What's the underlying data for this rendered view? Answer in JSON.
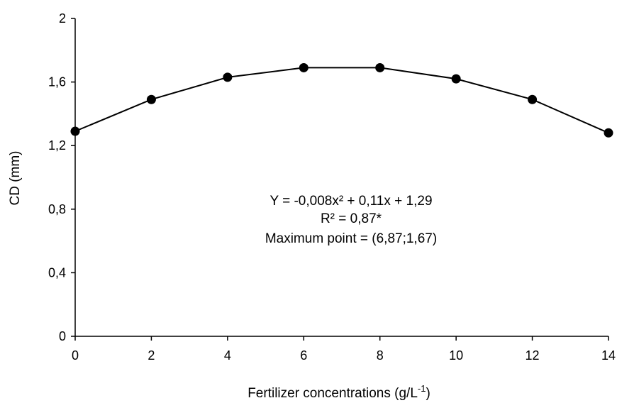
{
  "chart_data": {
    "type": "line",
    "title": "",
    "xlabel": "Fertilizer concentrations (g/L",
    "xlabel_superscript": "-1",
    "xlabel_suffix": ")",
    "ylabel": "CD (mm)",
    "x": [
      0,
      2,
      4,
      6,
      8,
      10,
      12,
      14
    ],
    "series": [
      {
        "values": [
          1.29,
          1.49,
          1.63,
          1.69,
          1.69,
          1.62,
          1.49,
          1.28
        ],
        "color": "#000000",
        "marker": "circle"
      }
    ],
    "xlim": [
      0,
      14
    ],
    "ylim": [
      0,
      2
    ],
    "x_ticks": [
      0,
      2,
      4,
      6,
      8,
      10,
      12,
      14
    ],
    "x_tick_labels": [
      "0",
      "2",
      "4",
      "6",
      "8",
      "10",
      "12",
      "14"
    ],
    "y_ticks": [
      0,
      0.4,
      0.8,
      1.2,
      1.6,
      2
    ],
    "y_tick_labels": [
      "0",
      "0,4",
      "0,8",
      "1,2",
      "1,6",
      "2"
    ],
    "grid": false,
    "legend": "none",
    "annotations": [
      "Y = -0,008x² + 0,11x + 1,29",
      "R² = 0,87*",
      "Maximum point = (6,87;1,67)"
    ]
  }
}
